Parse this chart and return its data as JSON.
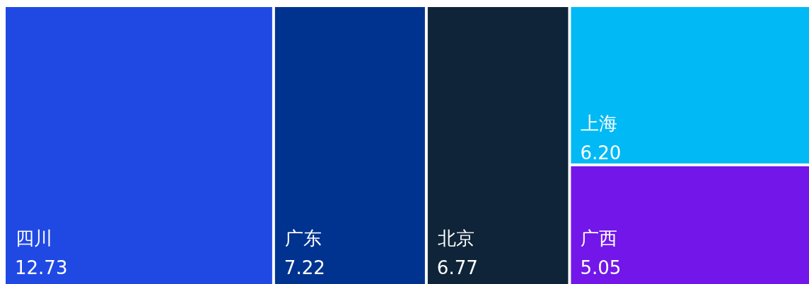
{
  "chart_data": {
    "type": "other",
    "categories": [
      "四川",
      "广东",
      "北京",
      "上海",
      "广西"
    ],
    "values": [
      12.73,
      7.22,
      6.77,
      6.2,
      5.05
    ],
    "value_labels": [
      "12.73",
      "7.22",
      "6.77",
      "6.20",
      "5.05"
    ],
    "colors": [
      "#2049e4",
      "#00338f",
      "#0f2438",
      "#00b9f5",
      "#7216e9"
    ]
  }
}
